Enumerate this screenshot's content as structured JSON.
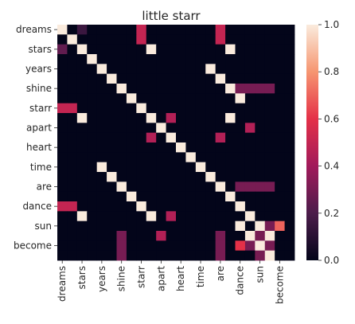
{
  "chart_data": {
    "type": "heatmap",
    "title": "little starr",
    "labels": [
      "dreams",
      "",
      "stars",
      "",
      "years",
      "",
      "shine",
      "",
      "starr",
      "",
      "apart",
      "",
      "heart",
      "",
      "time",
      "",
      "are",
      "",
      "dance",
      "",
      "sun",
      "",
      "become",
      ""
    ],
    "colorbar": {
      "min": 0.0,
      "max": 1.0,
      "ticks": [
        "0.0",
        "0.2",
        "0.4",
        "0.6",
        "0.8",
        "1.0"
      ]
    },
    "values": [
      [
        1,
        0,
        0.15,
        0,
        0,
        0,
        0,
        0,
        0.5,
        0,
        0,
        0,
        0,
        0,
        0,
        0,
        0.5,
        0,
        0,
        0,
        0,
        0,
        0,
        0
      ],
      [
        0,
        1,
        0,
        0,
        0,
        0,
        0,
        0,
        0.5,
        0,
        0,
        0,
        0,
        0,
        0,
        0,
        0.5,
        0,
        0,
        0,
        0,
        0,
        0,
        0
      ],
      [
        0.25,
        0,
        1,
        0,
        0,
        0,
        0,
        0,
        0,
        1,
        0,
        0,
        0,
        0,
        0,
        0,
        0,
        1,
        0,
        0,
        0,
        0,
        0,
        0
      ],
      [
        0,
        0,
        0,
        1,
        0,
        0,
        0,
        0,
        0,
        0,
        0,
        0,
        0,
        0,
        0,
        0,
        0,
        0,
        0,
        0,
        0,
        0,
        0,
        0
      ],
      [
        0,
        0,
        0,
        0,
        1,
        0,
        0,
        0,
        0,
        0,
        0,
        0,
        0,
        0,
        0,
        1,
        0,
        0,
        0,
        0,
        0,
        0,
        0,
        0
      ],
      [
        0,
        0,
        0,
        0,
        0,
        1,
        0,
        0,
        0,
        0,
        0,
        0,
        0,
        0,
        0,
        0,
        1,
        0,
        0,
        0,
        0,
        0,
        0,
        0
      ],
      [
        0,
        0,
        0,
        0,
        0,
        0,
        1,
        0,
        0,
        0,
        0,
        0,
        0,
        0,
        0,
        0,
        0,
        1,
        0.3,
        0.3,
        0.3,
        0.3,
        0,
        0
      ],
      [
        0,
        0,
        0,
        0,
        0,
        0,
        0,
        1,
        0,
        0,
        0,
        0,
        0,
        0,
        0,
        0,
        0,
        0,
        1,
        0,
        0,
        0,
        0,
        0
      ],
      [
        0.5,
        0.5,
        0,
        0,
        0,
        0,
        0,
        0,
        1,
        0,
        0,
        0,
        0,
        0,
        0,
        0,
        0,
        0,
        0,
        0,
        0,
        0,
        0,
        0
      ],
      [
        0,
        0,
        1,
        0,
        0,
        0,
        0,
        0,
        0,
        1,
        0,
        0.45,
        0,
        0,
        0,
        0,
        0,
        1,
        0,
        0,
        0,
        0,
        0,
        0
      ],
      [
        0,
        0,
        0,
        0,
        0,
        0,
        0,
        0,
        0,
        0,
        1,
        0,
        0,
        0,
        0,
        0,
        0,
        0,
        0,
        0.45,
        0,
        0,
        0,
        0
      ],
      [
        0,
        0,
        0,
        0,
        0,
        0,
        0,
        0,
        0,
        0.45,
        0,
        1,
        0,
        0,
        0,
        0,
        0.45,
        0,
        0,
        0,
        0,
        0,
        0,
        0
      ],
      [
        0,
        0,
        0,
        0,
        0,
        0,
        0,
        0,
        0,
        0,
        0,
        0,
        1,
        0,
        0,
        0,
        0,
        0,
        0,
        0,
        0,
        0,
        0,
        0
      ],
      [
        0,
        0,
        0,
        0,
        0,
        0,
        0,
        0,
        0,
        0,
        0,
        0,
        0,
        1,
        0,
        0,
        0,
        0,
        0,
        0,
        0,
        0,
        0,
        0
      ],
      [
        0,
        0,
        0,
        0,
        1,
        0,
        0,
        0,
        0,
        0,
        0,
        0,
        0,
        0,
        1,
        0,
        0,
        0,
        0,
        0,
        0,
        0,
        0,
        0
      ],
      [
        0,
        0,
        0,
        0,
        0,
        1,
        0,
        0,
        0,
        0,
        0,
        0,
        0,
        0,
        0,
        1,
        0,
        0,
        0,
        0,
        0,
        0,
        0,
        0
      ],
      [
        0,
        0,
        0,
        0,
        0,
        0,
        1,
        0,
        0,
        0,
        0,
        0,
        0,
        0,
        0,
        0,
        1,
        0,
        0.3,
        0.3,
        0.3,
        0.3,
        0,
        0
      ],
      [
        0,
        0,
        0,
        0,
        0,
        0,
        0,
        1,
        0,
        0,
        0,
        0,
        0,
        0,
        0,
        0,
        0,
        1,
        0,
        0,
        0,
        0,
        0,
        0
      ],
      [
        0.5,
        0.5,
        0,
        0,
        0,
        0,
        0,
        0,
        1,
        0,
        0,
        0,
        0,
        0,
        0,
        0,
        0,
        0,
        1,
        0,
        0,
        0,
        0,
        0
      ],
      [
        0,
        0,
        1,
        0,
        0,
        0,
        0,
        0,
        0,
        1,
        0,
        0.45,
        0,
        0,
        0,
        0,
        0,
        0,
        0,
        1,
        0,
        0,
        0,
        0
      ],
      [
        0,
        0,
        0,
        0,
        0,
        0,
        0,
        0,
        0,
        0,
        0,
        0,
        0,
        0,
        0,
        0,
        0,
        0,
        1,
        0,
        1,
        0.3,
        0.7,
        0
      ],
      [
        0,
        0,
        0,
        0,
        0,
        0,
        0.3,
        0,
        0,
        0,
        0.45,
        0,
        0,
        0,
        0,
        0,
        0.3,
        0,
        0,
        1,
        0.3,
        1,
        0,
        0
      ],
      [
        0,
        0,
        0,
        0,
        0,
        0,
        0.3,
        0,
        0,
        0,
        0,
        0,
        0,
        0,
        0,
        0,
        0.3,
        0,
        0.6,
        0.3,
        1,
        0.3,
        0,
        0
      ],
      [
        0,
        0,
        0,
        0,
        0,
        0,
        0.3,
        0,
        0,
        0,
        0,
        0,
        0,
        0,
        0,
        0,
        0.3,
        0,
        0,
        0,
        0.3,
        1,
        0,
        0
      ]
    ]
  }
}
